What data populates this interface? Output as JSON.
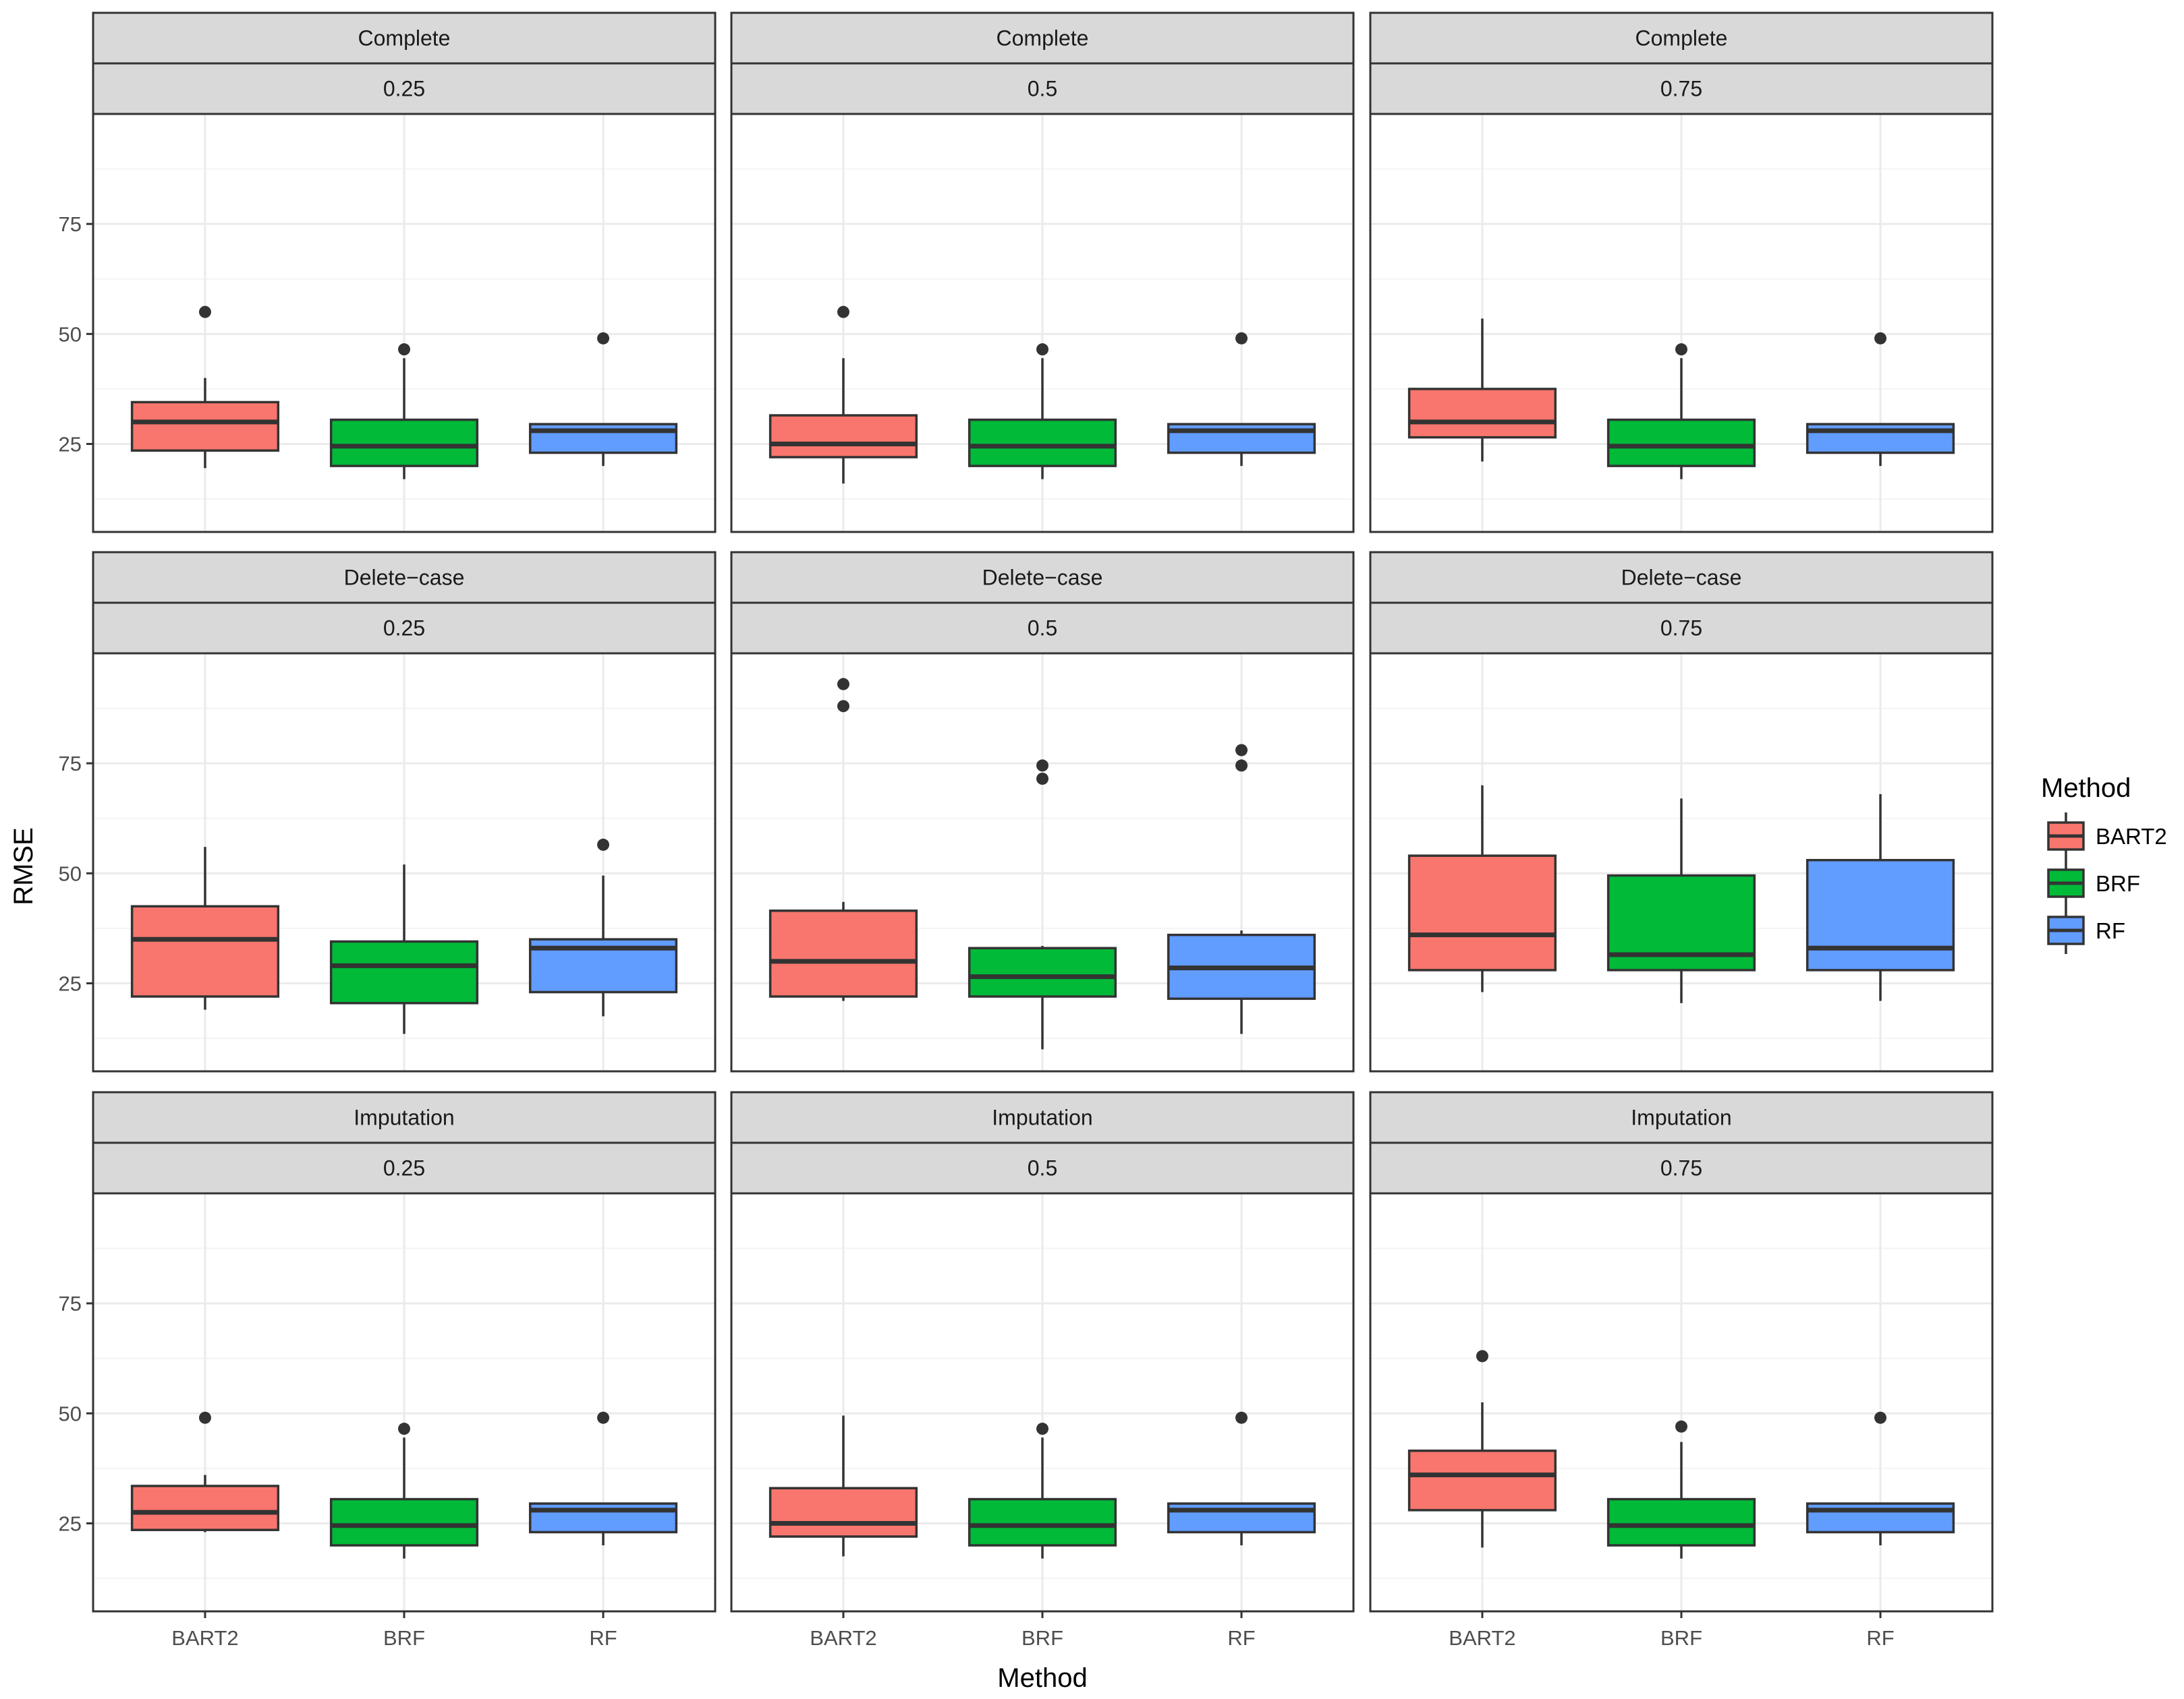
{
  "chart_data": {
    "type": "boxplot",
    "xlabel": "Method",
    "ylabel": "RMSE",
    "ylim": [
      5,
      100
    ],
    "y_ticks": [
      25,
      50,
      75
    ],
    "categories": [
      "BART2",
      "BRF",
      "RF"
    ],
    "legend": {
      "title": "Method",
      "position": "right",
      "entries": [
        "BART2",
        "BRF",
        "RF"
      ]
    },
    "colors": {
      "BART2": "#F8766D",
      "BRF": "#00BA38",
      "RF": "#619CFF",
      "strip": "#d9d9d9",
      "grid": "#ebebeb",
      "outline": "#333333"
    },
    "row_labels": [
      "Complete",
      "Delete−case",
      "Imputation"
    ],
    "col_labels": [
      "0.25",
      "0.5",
      "0.75"
    ],
    "panels": [
      {
        "row": "Complete",
        "col": "0.25",
        "boxes": [
          {
            "method": "BART2",
            "lower": 19.5,
            "q1": 23.5,
            "median": 30,
            "q3": 34.5,
            "upper": 40,
            "outliers": [
              55
            ]
          },
          {
            "method": "BRF",
            "lower": 17,
            "q1": 20,
            "median": 24.5,
            "q3": 30.5,
            "upper": 44.5,
            "outliers": [
              46.5
            ]
          },
          {
            "method": "RF",
            "lower": 20,
            "q1": 23,
            "median": 28,
            "q3": 29.5,
            "upper": 29.5,
            "outliers": [
              49
            ]
          }
        ]
      },
      {
        "row": "Complete",
        "col": "0.5",
        "boxes": [
          {
            "method": "BART2",
            "lower": 16,
            "q1": 22,
            "median": 25,
            "q3": 31.5,
            "upper": 44.5,
            "outliers": [
              55
            ]
          },
          {
            "method": "BRF",
            "lower": 17,
            "q1": 20,
            "median": 24.5,
            "q3": 30.5,
            "upper": 44.5,
            "outliers": [
              46.5
            ]
          },
          {
            "method": "RF",
            "lower": 20,
            "q1": 23,
            "median": 28,
            "q3": 29.5,
            "upper": 29.5,
            "outliers": [
              49
            ]
          }
        ]
      },
      {
        "row": "Complete",
        "col": "0.75",
        "boxes": [
          {
            "method": "BART2",
            "lower": 21,
            "q1": 26.5,
            "median": 30,
            "q3": 37.5,
            "upper": 53.5,
            "outliers": []
          },
          {
            "method": "BRF",
            "lower": 17,
            "q1": 20,
            "median": 24.5,
            "q3": 30.5,
            "upper": 44.5,
            "outliers": [
              46.5
            ]
          },
          {
            "method": "RF",
            "lower": 20,
            "q1": 23,
            "median": 28,
            "q3": 29.5,
            "upper": 29.5,
            "outliers": [
              49
            ]
          }
        ]
      },
      {
        "row": "Delete−case",
        "col": "0.25",
        "boxes": [
          {
            "method": "BART2",
            "lower": 19,
            "q1": 22,
            "median": 35,
            "q3": 42.5,
            "upper": 56,
            "outliers": []
          },
          {
            "method": "BRF",
            "lower": 13.5,
            "q1": 20.5,
            "median": 29,
            "q3": 34.5,
            "upper": 52,
            "outliers": []
          },
          {
            "method": "RF",
            "lower": 17.5,
            "q1": 23,
            "median": 33,
            "q3": 35,
            "upper": 49.5,
            "outliers": [
              56.5
            ]
          }
        ]
      },
      {
        "row": "Delete−case",
        "col": "0.5",
        "boxes": [
          {
            "method": "BART2",
            "lower": 21,
            "q1": 22,
            "median": 30,
            "q3": 41.5,
            "upper": 43.5,
            "outliers": [
              88,
              93
            ]
          },
          {
            "method": "BRF",
            "lower": 10,
            "q1": 22,
            "median": 26.5,
            "q3": 33,
            "upper": 33.5,
            "outliers": [
              71.5,
              74.5
            ]
          },
          {
            "method": "RF",
            "lower": 13.5,
            "q1": 21.5,
            "median": 28.5,
            "q3": 36,
            "upper": 37,
            "outliers": [
              74.5,
              78
            ]
          }
        ]
      },
      {
        "row": "Delete−case",
        "col": "0.75",
        "boxes": [
          {
            "method": "BART2",
            "lower": 23,
            "q1": 28,
            "median": 36,
            "q3": 54,
            "upper": 70,
            "outliers": []
          },
          {
            "method": "BRF",
            "lower": 20.5,
            "q1": 28,
            "median": 31.5,
            "q3": 49.5,
            "upper": 67,
            "outliers": []
          },
          {
            "method": "RF",
            "lower": 21,
            "q1": 28,
            "median": 33,
            "q3": 53,
            "upper": 68,
            "outliers": []
          }
        ]
      },
      {
        "row": "Imputation",
        "col": "0.25",
        "boxes": [
          {
            "method": "BART2",
            "lower": 23,
            "q1": 23.5,
            "median": 27.5,
            "q3": 33.5,
            "upper": 36,
            "outliers": [
              49
            ]
          },
          {
            "method": "BRF",
            "lower": 17,
            "q1": 20,
            "median": 24.5,
            "q3": 30.5,
            "upper": 44.5,
            "outliers": [
              46.5
            ]
          },
          {
            "method": "RF",
            "lower": 20,
            "q1": 23,
            "median": 28,
            "q3": 29.5,
            "upper": 29.5,
            "outliers": [
              49
            ]
          }
        ]
      },
      {
        "row": "Imputation",
        "col": "0.5",
        "boxes": [
          {
            "method": "BART2",
            "lower": 17.5,
            "q1": 22,
            "median": 25,
            "q3": 33,
            "upper": 49.5,
            "outliers": []
          },
          {
            "method": "BRF",
            "lower": 17,
            "q1": 20,
            "median": 24.5,
            "q3": 30.5,
            "upper": 44.5,
            "outliers": [
              46.5
            ]
          },
          {
            "method": "RF",
            "lower": 20,
            "q1": 23,
            "median": 28,
            "q3": 29.5,
            "upper": 29.5,
            "outliers": [
              49
            ]
          }
        ]
      },
      {
        "row": "Imputation",
        "col": "0.75",
        "boxes": [
          {
            "method": "BART2",
            "lower": 19.5,
            "q1": 28,
            "median": 36,
            "q3": 41.5,
            "upper": 52.5,
            "outliers": [
              63
            ]
          },
          {
            "method": "BRF",
            "lower": 17,
            "q1": 20,
            "median": 24.5,
            "q3": 30.5,
            "upper": 43.5,
            "outliers": [
              47
            ]
          },
          {
            "method": "RF",
            "lower": 20,
            "q1": 23,
            "median": 28,
            "q3": 29.5,
            "upper": 29.5,
            "outliers": [
              49
            ]
          }
        ]
      }
    ]
  }
}
